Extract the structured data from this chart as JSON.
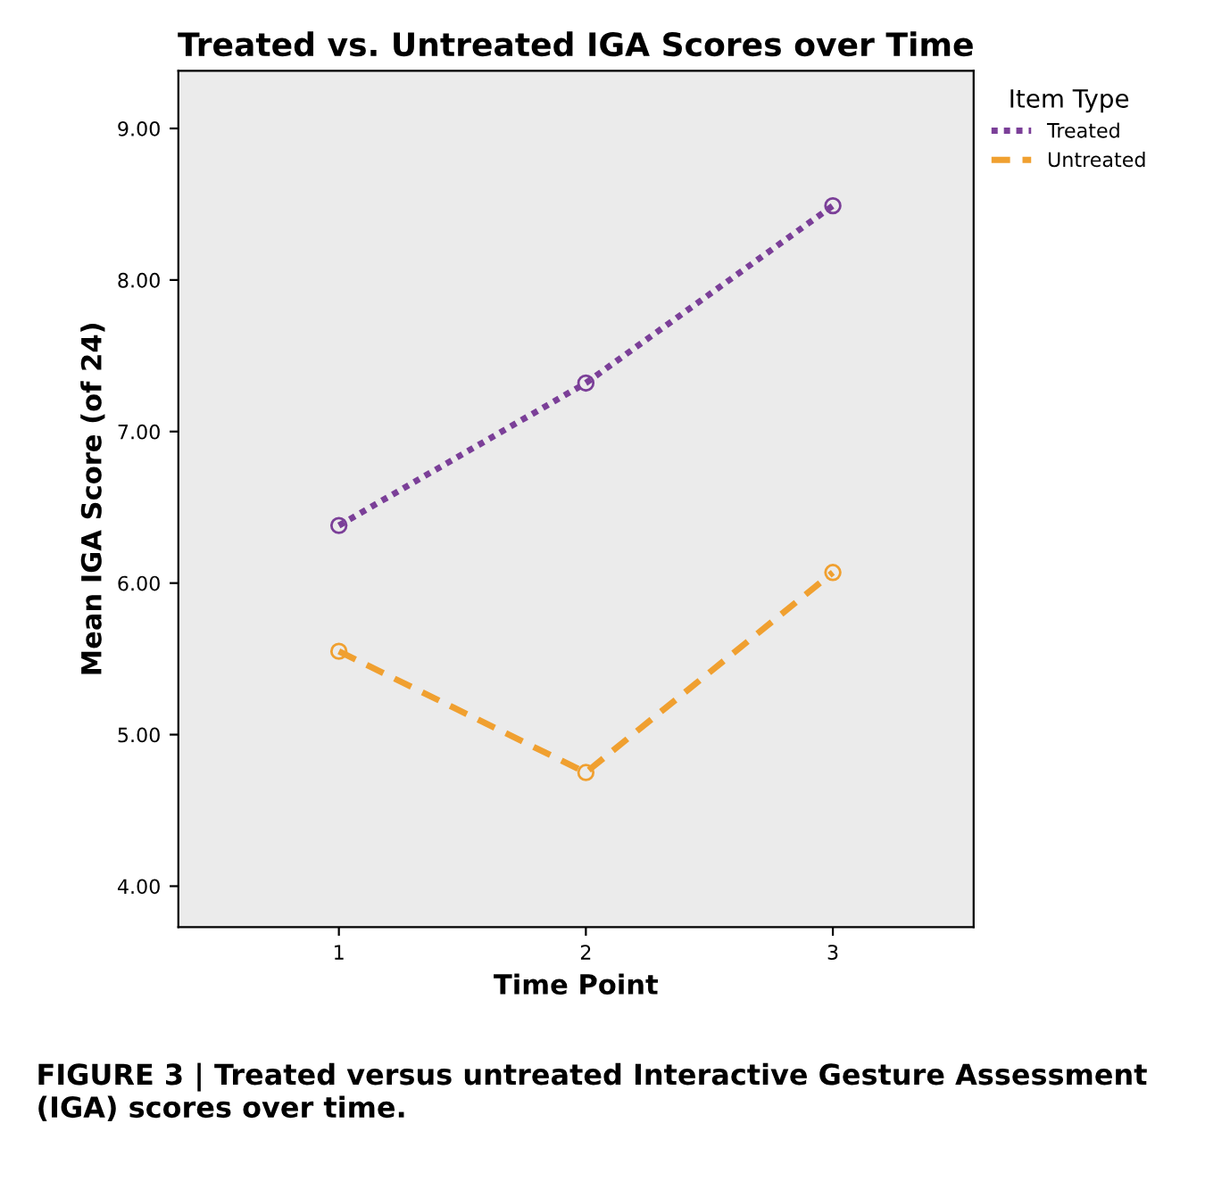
{
  "chart_data": {
    "type": "line",
    "title": "Treated vs. Untreated IGA Scores over Time",
    "xlabel": "Time Point",
    "ylabel": "Mean IGA Score (of 24)",
    "legend_title": "Item Type",
    "x": [
      1,
      2,
      3
    ],
    "series": [
      {
        "name": "Treated",
        "color": "#7b3f98",
        "line_style": "dotted",
        "values": [
          6.38,
          7.32,
          8.49
        ]
      },
      {
        "name": "Untreated",
        "color": "#f0a030",
        "line_style": "dashed",
        "values": [
          5.55,
          4.75,
          6.07
        ]
      }
    ],
    "xlim": [
      0.35,
      3.57
    ],
    "xticks": [
      1,
      2,
      3
    ],
    "ylim": [
      3.73,
      9.38
    ],
    "yticks": [
      {
        "value": 4,
        "label": "4.00"
      },
      {
        "value": 5,
        "label": "5.00"
      },
      {
        "value": 6,
        "label": "6.00"
      },
      {
        "value": 7,
        "label": "7.00"
      },
      {
        "value": 8,
        "label": "8.00"
      },
      {
        "value": 9,
        "label": "9.00"
      }
    ],
    "marker": "circle",
    "grid": false,
    "legend": "top right",
    "annotations": [
      "FIGURE 3 | Treated versus untreated Interactive Gesture Assessment (IGA) scores over time."
    ]
  }
}
